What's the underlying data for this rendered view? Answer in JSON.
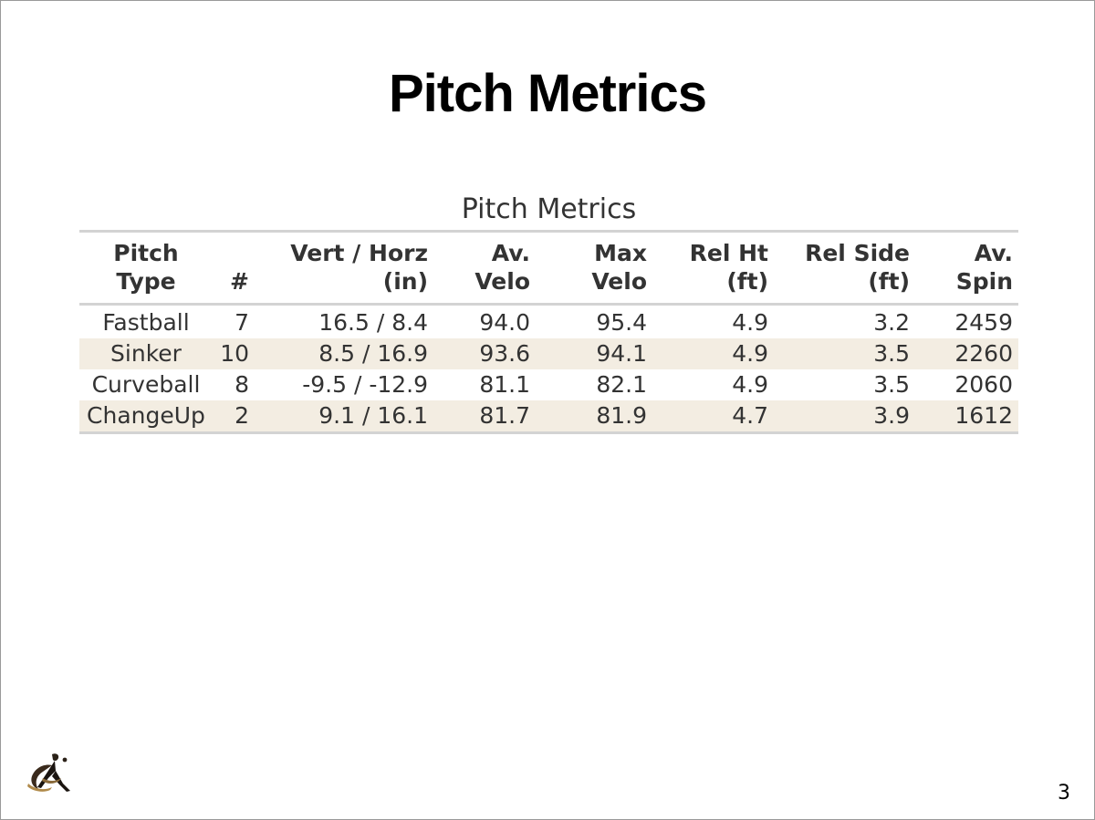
{
  "slide": {
    "title": "Pitch Metrics",
    "page_number": "3",
    "logo_icon": "pitcher-logo-icon"
  },
  "table": {
    "caption": "Pitch Metrics",
    "headers": [
      {
        "line1": "Pitch",
        "line2": "Type"
      },
      {
        "line1": "",
        "line2": "#"
      },
      {
        "line1": "Vert / Horz",
        "line2": "(in)"
      },
      {
        "line1": "Av.",
        "line2": "Velo"
      },
      {
        "line1": "Max",
        "line2": "Velo"
      },
      {
        "line1": "Rel Ht",
        "line2": "(ft)"
      },
      {
        "line1": "Rel Side",
        "line2": "(ft)"
      },
      {
        "line1": "Av.",
        "line2": "Spin"
      }
    ],
    "rows": [
      [
        "Fastball",
        "7",
        "16.5 / 8.4",
        "94.0",
        "95.4",
        "4.9",
        "3.2",
        "2459"
      ],
      [
        "Sinker",
        "10",
        "8.5 / 16.9",
        "93.6",
        "94.1",
        "4.9",
        "3.5",
        "2260"
      ],
      [
        "Curveball",
        "8",
        "-9.5 / -12.9",
        "81.1",
        "82.1",
        "4.9",
        "3.5",
        "2060"
      ],
      [
        "ChangeUp",
        "2",
        "9.1 / 16.1",
        "81.7",
        "81.9",
        "4.7",
        "3.9",
        "1612"
      ]
    ],
    "stripe_color": "#f3ede2"
  }
}
